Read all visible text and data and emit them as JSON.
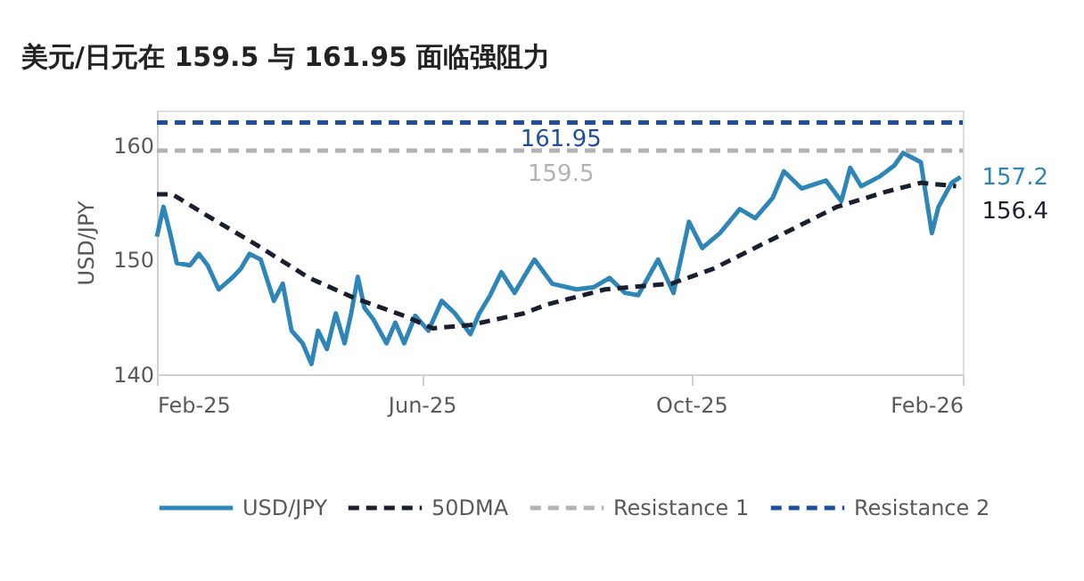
{
  "chart_data": {
    "type": "line",
    "title": "美元/日元在 159.5 与 161.95 面临强阻力",
    "ylabel": "USD/JPY",
    "xlim": [
      "2025-02-01",
      "2026-02-01"
    ],
    "xticks": [
      {
        "value": "2025-02-01",
        "label": "Feb-25"
      },
      {
        "value": "2025-06-01",
        "label": "Jun-25"
      },
      {
        "value": "2025-10-01",
        "label": "Oct-25"
      },
      {
        "value": "2026-02-01",
        "label": "Feb-26"
      }
    ],
    "ylim": [
      140,
      163
    ],
    "yticks": [
      140,
      150,
      160
    ],
    "grid": false,
    "legend": "bottom",
    "marker": "none",
    "series": [
      {
        "name": "USD/JPY",
        "color": "#2e86b8",
        "line_style": "solid",
        "x": [
          "2025-02-01",
          "2025-02-04",
          "2025-02-07",
          "2025-02-10",
          "2025-02-16",
          "2025-02-20",
          "2025-02-24",
          "2025-03-01",
          "2025-03-07",
          "2025-03-11",
          "2025-03-15",
          "2025-03-20",
          "2025-03-26",
          "2025-03-30",
          "2025-04-03",
          "2025-04-08",
          "2025-04-12",
          "2025-04-15",
          "2025-04-19",
          "2025-04-23",
          "2025-04-27",
          "2025-04-30",
          "2025-05-03",
          "2025-05-06",
          "2025-05-10",
          "2025-05-16",
          "2025-05-20",
          "2025-05-24",
          "2025-05-29",
          "2025-06-04",
          "2025-06-10",
          "2025-06-16",
          "2025-06-23",
          "2025-06-27",
          "2025-07-02",
          "2025-07-07",
          "2025-07-13",
          "2025-07-17",
          "2025-07-22",
          "2025-07-30",
          "2025-08-10",
          "2025-08-18",
          "2025-08-25",
          "2025-09-01",
          "2025-09-07",
          "2025-09-16",
          "2025-09-23",
          "2025-09-30",
          "2025-10-06",
          "2025-10-14",
          "2025-10-23",
          "2025-10-30",
          "2025-11-07",
          "2025-11-12",
          "2025-11-20",
          "2025-12-01",
          "2025-12-08",
          "2025-12-12",
          "2025-12-17",
          "2025-12-25",
          "2026-01-01",
          "2026-01-05",
          "2026-01-13",
          "2026-01-18",
          "2026-01-21",
          "2026-01-27",
          "2026-01-31"
        ],
        "values": [
          152.0,
          154.6,
          152.3,
          149.7,
          149.5,
          150.5,
          149.5,
          147.4,
          148.4,
          149.2,
          150.5,
          150.0,
          146.4,
          147.9,
          143.8,
          142.7,
          140.9,
          143.8,
          142.2,
          145.3,
          142.7,
          145.3,
          148.5,
          145.8,
          144.8,
          142.7,
          144.5,
          142.7,
          145.1,
          143.8,
          146.4,
          145.3,
          143.5,
          145.3,
          146.9,
          148.9,
          147.1,
          148.4,
          150.0,
          147.9,
          147.4,
          147.6,
          148.4,
          147.1,
          146.9,
          150.0,
          147.1,
          153.3,
          151.0,
          152.3,
          154.4,
          153.6,
          155.4,
          157.7,
          156.2,
          156.9,
          155.1,
          158.0,
          156.4,
          157.2,
          158.2,
          159.3,
          158.5,
          152.3,
          154.6,
          156.7,
          157.2
        ]
      },
      {
        "name": "50DMA",
        "color": "#1a1f2e",
        "line_style": "dashed",
        "x": [
          "2025-02-01",
          "2025-02-08",
          "2025-02-24",
          "2025-03-18",
          "2025-04-11",
          "2025-05-02",
          "2025-05-24",
          "2025-06-06",
          "2025-06-23",
          "2025-07-17",
          "2025-07-28",
          "2025-08-23",
          "2025-09-22",
          "2025-10-11",
          "2025-11-07",
          "2025-12-06",
          "2025-12-28",
          "2026-01-13",
          "2026-01-29"
        ],
        "values": [
          155.7,
          155.7,
          153.8,
          151.3,
          148.4,
          146.6,
          145.1,
          144.0,
          144.3,
          145.3,
          146.1,
          147.4,
          147.9,
          149.2,
          151.8,
          154.6,
          155.9,
          156.7,
          156.4
        ]
      },
      {
        "name": "Resistance 1",
        "color": "#b3b3b3",
        "line_style": "dashed",
        "x": [
          "2025-02-01",
          "2026-02-01"
        ],
        "values": [
          159.5,
          159.5
        ]
      },
      {
        "name": "Resistance 2",
        "color": "#1f4e9c",
        "line_style": "dashed",
        "x": [
          "2025-02-01",
          "2026-02-01"
        ],
        "values": [
          161.95,
          161.95
        ]
      }
    ],
    "annotations": [
      {
        "text": "161.95",
        "x": "2025-08-03",
        "y": 161.95
      },
      {
        "text": "159.5",
        "x": "2025-08-03",
        "y": 159.5
      },
      {
        "text": "157.2",
        "x": "2026-01-31",
        "y": 157.2
      },
      {
        "text": "156.4",
        "x": "2026-01-31",
        "y": 156.4
      }
    ]
  }
}
